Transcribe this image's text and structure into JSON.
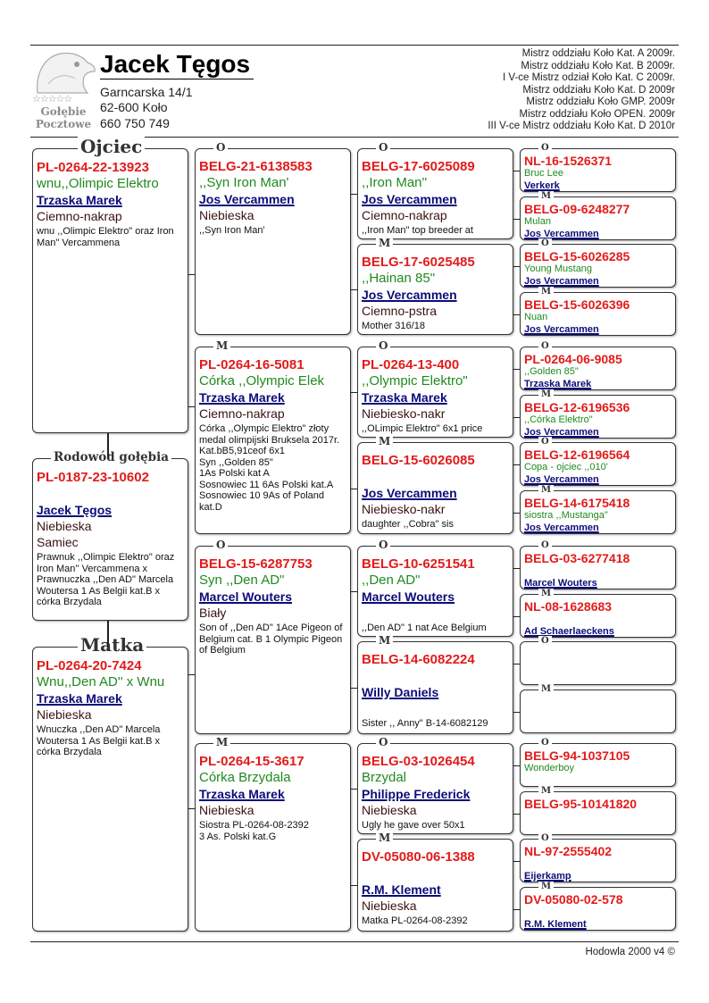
{
  "header": {
    "logo": {
      "stars": "☆☆☆☆☆",
      "line1": "Gołębie",
      "line2": "Pocztowe"
    },
    "owner_name": "Jacek Tęgos",
    "address": [
      "Garncarska 14/1",
      "62-600 Koło",
      "660 750 749"
    ],
    "titles": [
      "Mistrz oddziału Koło Kat. A  2009r.",
      "Mistrz oddziału Koło Kat. B 2009r.",
      "I  V-ce Mistrz odział Koło Kat. C 2009r.",
      "Mistrz oddziału Koło Kat. D 2009r",
      "Mistrz oddziału Koło GMP. 2009r",
      "Mistrz oddziału Koło OPEN. 2009r",
      "III V-ce Mistrz oddziału Koło Kat. D 2010r"
    ]
  },
  "pedigree": {
    "father": {
      "label": "Ojciec",
      "ring": "PL-0264-22-13923",
      "name": "wnu,,Olimpic Elektro",
      "breeder": "Trzaska Marek",
      "color": "Ciemno-nakrap",
      "notes": "wnu ,,Olimpic Elektro\" oraz Iron Man\" Vercammena"
    },
    "subject": {
      "label": "Rodowód gołębia",
      "ring": "PL-0187-23-10602",
      "name": "",
      "breeder": "Jacek Tęgos",
      "color": "Niebieska",
      "sex": "Samiec",
      "notes": "Prawnuk ,,Olimpic Elektro\" oraz Iron Man'' Vercammena x Prawnuczka ,,Den AD\" Marcela\nWoutersa 1 As Belgii kat.B x córka Brzydala"
    },
    "mother": {
      "label": "Matka",
      "ring": "PL-0264-20-7424",
      "name": "Wnu,,Den AD'' x Wnu",
      "breeder": "Trzaska Marek",
      "color": "Niebieska",
      "notes": "Wnuczka ,,Den AD\" Marcela Woutersa 1 As Belgii kat.B x córka  Brzydala"
    },
    "grandparents": [
      {
        "label": "O",
        "ring": "BELG-21-6138583",
        "name": ",,Syn Iron Man'",
        "breeder": "Jos Vercammen",
        "color": "Niebieska",
        "notes": ",,Syn Iron Man'"
      },
      {
        "label": "M",
        "ring": "PL-0264-16-5081",
        "name": "Córka ,,Olympic Elek",
        "breeder": "Trzaska Marek",
        "color": "Ciemno-nakrap",
        "notes": "Córka ,,Olympic Elektro\" złoty medal olimpijski Bruksela 2017r. Kat.bB5,91ceof 6x1\nSyn ,,Golden 85\"\n1As Polski kat A\nSosnowiec 11 6As Polski kat.A\nSosnowiec 10 9As of Poland kat.D"
      },
      {
        "label": "O",
        "ring": "BELG-15-6287753",
        "name": "Syn ,,Den AD\"",
        "breeder": "Marcel Wouters",
        "color": "Biały",
        "notes": "Son of ,,Den AD\" 1Ace Pigeon of Belgium cat. B 1 Olympic Pigeon of Belgium"
      },
      {
        "label": "M",
        "ring": "PL-0264-15-3617",
        "name": "Córka Brzydala",
        "breeder": "Trzaska Marek",
        "color": "Niebieska",
        "notes": "Siostra PL-0264-08-2392\n3 As. Polski kat.G"
      }
    ],
    "great_grandparents": [
      {
        "label": "O",
        "ring": "BELG-17-6025089",
        "name": ",,Iron Man''",
        "breeder": "Jos Vercammen",
        "color": "Ciemno-nakrap",
        "notes": ",,Iron Man\" top breeder at"
      },
      {
        "label": "M",
        "ring": "BELG-17-6025485",
        "name": ",,Hainan 85\"",
        "breeder": "Jos Vercammen",
        "color": "Ciemno-pstra",
        "notes": "Mother 316/18"
      },
      {
        "label": "O",
        "ring": "PL-0264-13-400",
        "name": ",,Olympic Elektro\"",
        "breeder": "Trzaska Marek",
        "color": "Niebiesko-nakr",
        "notes": ",,OLimpic Elektro\" 6x1 price"
      },
      {
        "label": "M",
        "ring": "BELG-15-6026085",
        "name": "",
        "breeder": "Jos Vercammen",
        "color": "Niebiesko-nakr",
        "notes": "daughter ,,Cobra\" sis"
      },
      {
        "label": "O",
        "ring": "BELG-10-6251541",
        "name": ",,Den AD\"",
        "breeder": "Marcel Wouters",
        "color": "",
        "notes": ",,Den AD\" 1 nat Ace Belgium"
      },
      {
        "label": "M",
        "ring": "BELG-14-6082224",
        "name": "",
        "breeder": "Willy Daniels",
        "color": "",
        "notes": "Sister ,, Anny\" B-14-6082129"
      },
      {
        "label": "O",
        "ring": "BELG-03-1026454",
        "name": "Brzydal",
        "breeder": "Philippe Frederick",
        "color": "Niebieska",
        "notes": "Ugly he gave over 50x1"
      },
      {
        "label": "M",
        "ring": "DV-05080-06-1388",
        "name": "",
        "breeder": "R.M. Klement",
        "color": "Niebieska",
        "notes": "Matka  PL-0264-08-2392"
      }
    ],
    "great_great_grandparents": [
      {
        "label": "O",
        "ring": "NL-16-1526371",
        "name": "Bruc Lee",
        "breeder": "Verkerk"
      },
      {
        "label": "M",
        "ring": "BELG-09-6248277",
        "name": "Mulan",
        "breeder": "Jos Vercammen"
      },
      {
        "label": "O",
        "ring": "BELG-15-6026285",
        "name": "Young Mustang",
        "breeder": "Jos Vercammen"
      },
      {
        "label": "M",
        "ring": "BELG-15-6026396",
        "name": "Nuan",
        "breeder": "Jos Vercammen"
      },
      {
        "label": "O",
        "ring": "PL-0264-06-9085",
        "name": ",,Golden 85\"",
        "breeder": "Trzaska Marek"
      },
      {
        "label": "M",
        "ring": "BELG-12-6196536",
        "name": ",,Córka Elektro\"",
        "breeder": "Jos Vercammen"
      },
      {
        "label": "O",
        "ring": "BELG-12-6196564",
        "name": "Copa - ojciec ,,010'",
        "breeder": "Jos Vercammen"
      },
      {
        "label": "M",
        "ring": "BELG-14-6175418",
        "name": "siostra ,,Mustanga\"",
        "breeder": "Jos Vercammen"
      },
      {
        "label": "O",
        "ring": "BELG-03-6277418",
        "name": "",
        "breeder": "Marcel Wouters"
      },
      {
        "label": "M",
        "ring": "NL-08-1628683",
        "name": "",
        "breeder": "Ad Schaerlaeckens"
      },
      {
        "label": "O",
        "ring": "",
        "name": "",
        "breeder": ""
      },
      {
        "label": "M",
        "ring": "",
        "name": "",
        "breeder": ""
      },
      {
        "label": "O",
        "ring": "BELG-94-1037105",
        "name": "Wonderboy",
        "breeder": ""
      },
      {
        "label": "M",
        "ring": "BELG-95-10141820",
        "name": "",
        "breeder": ""
      },
      {
        "label": "O",
        "ring": "NL-97-2555402",
        "name": "",
        "breeder": "Eijerkamp"
      },
      {
        "label": "M",
        "ring": "DV-05080-02-578",
        "name": "",
        "breeder": "R.M. Klement"
      }
    ]
  },
  "footer": {
    "text": "Hodowla 2000 v4 ©"
  },
  "colors": {
    "ring": "#e31b1b",
    "name": "#1f8a1f",
    "breeder": "#0c0c7a",
    "color": "#3a1212"
  }
}
